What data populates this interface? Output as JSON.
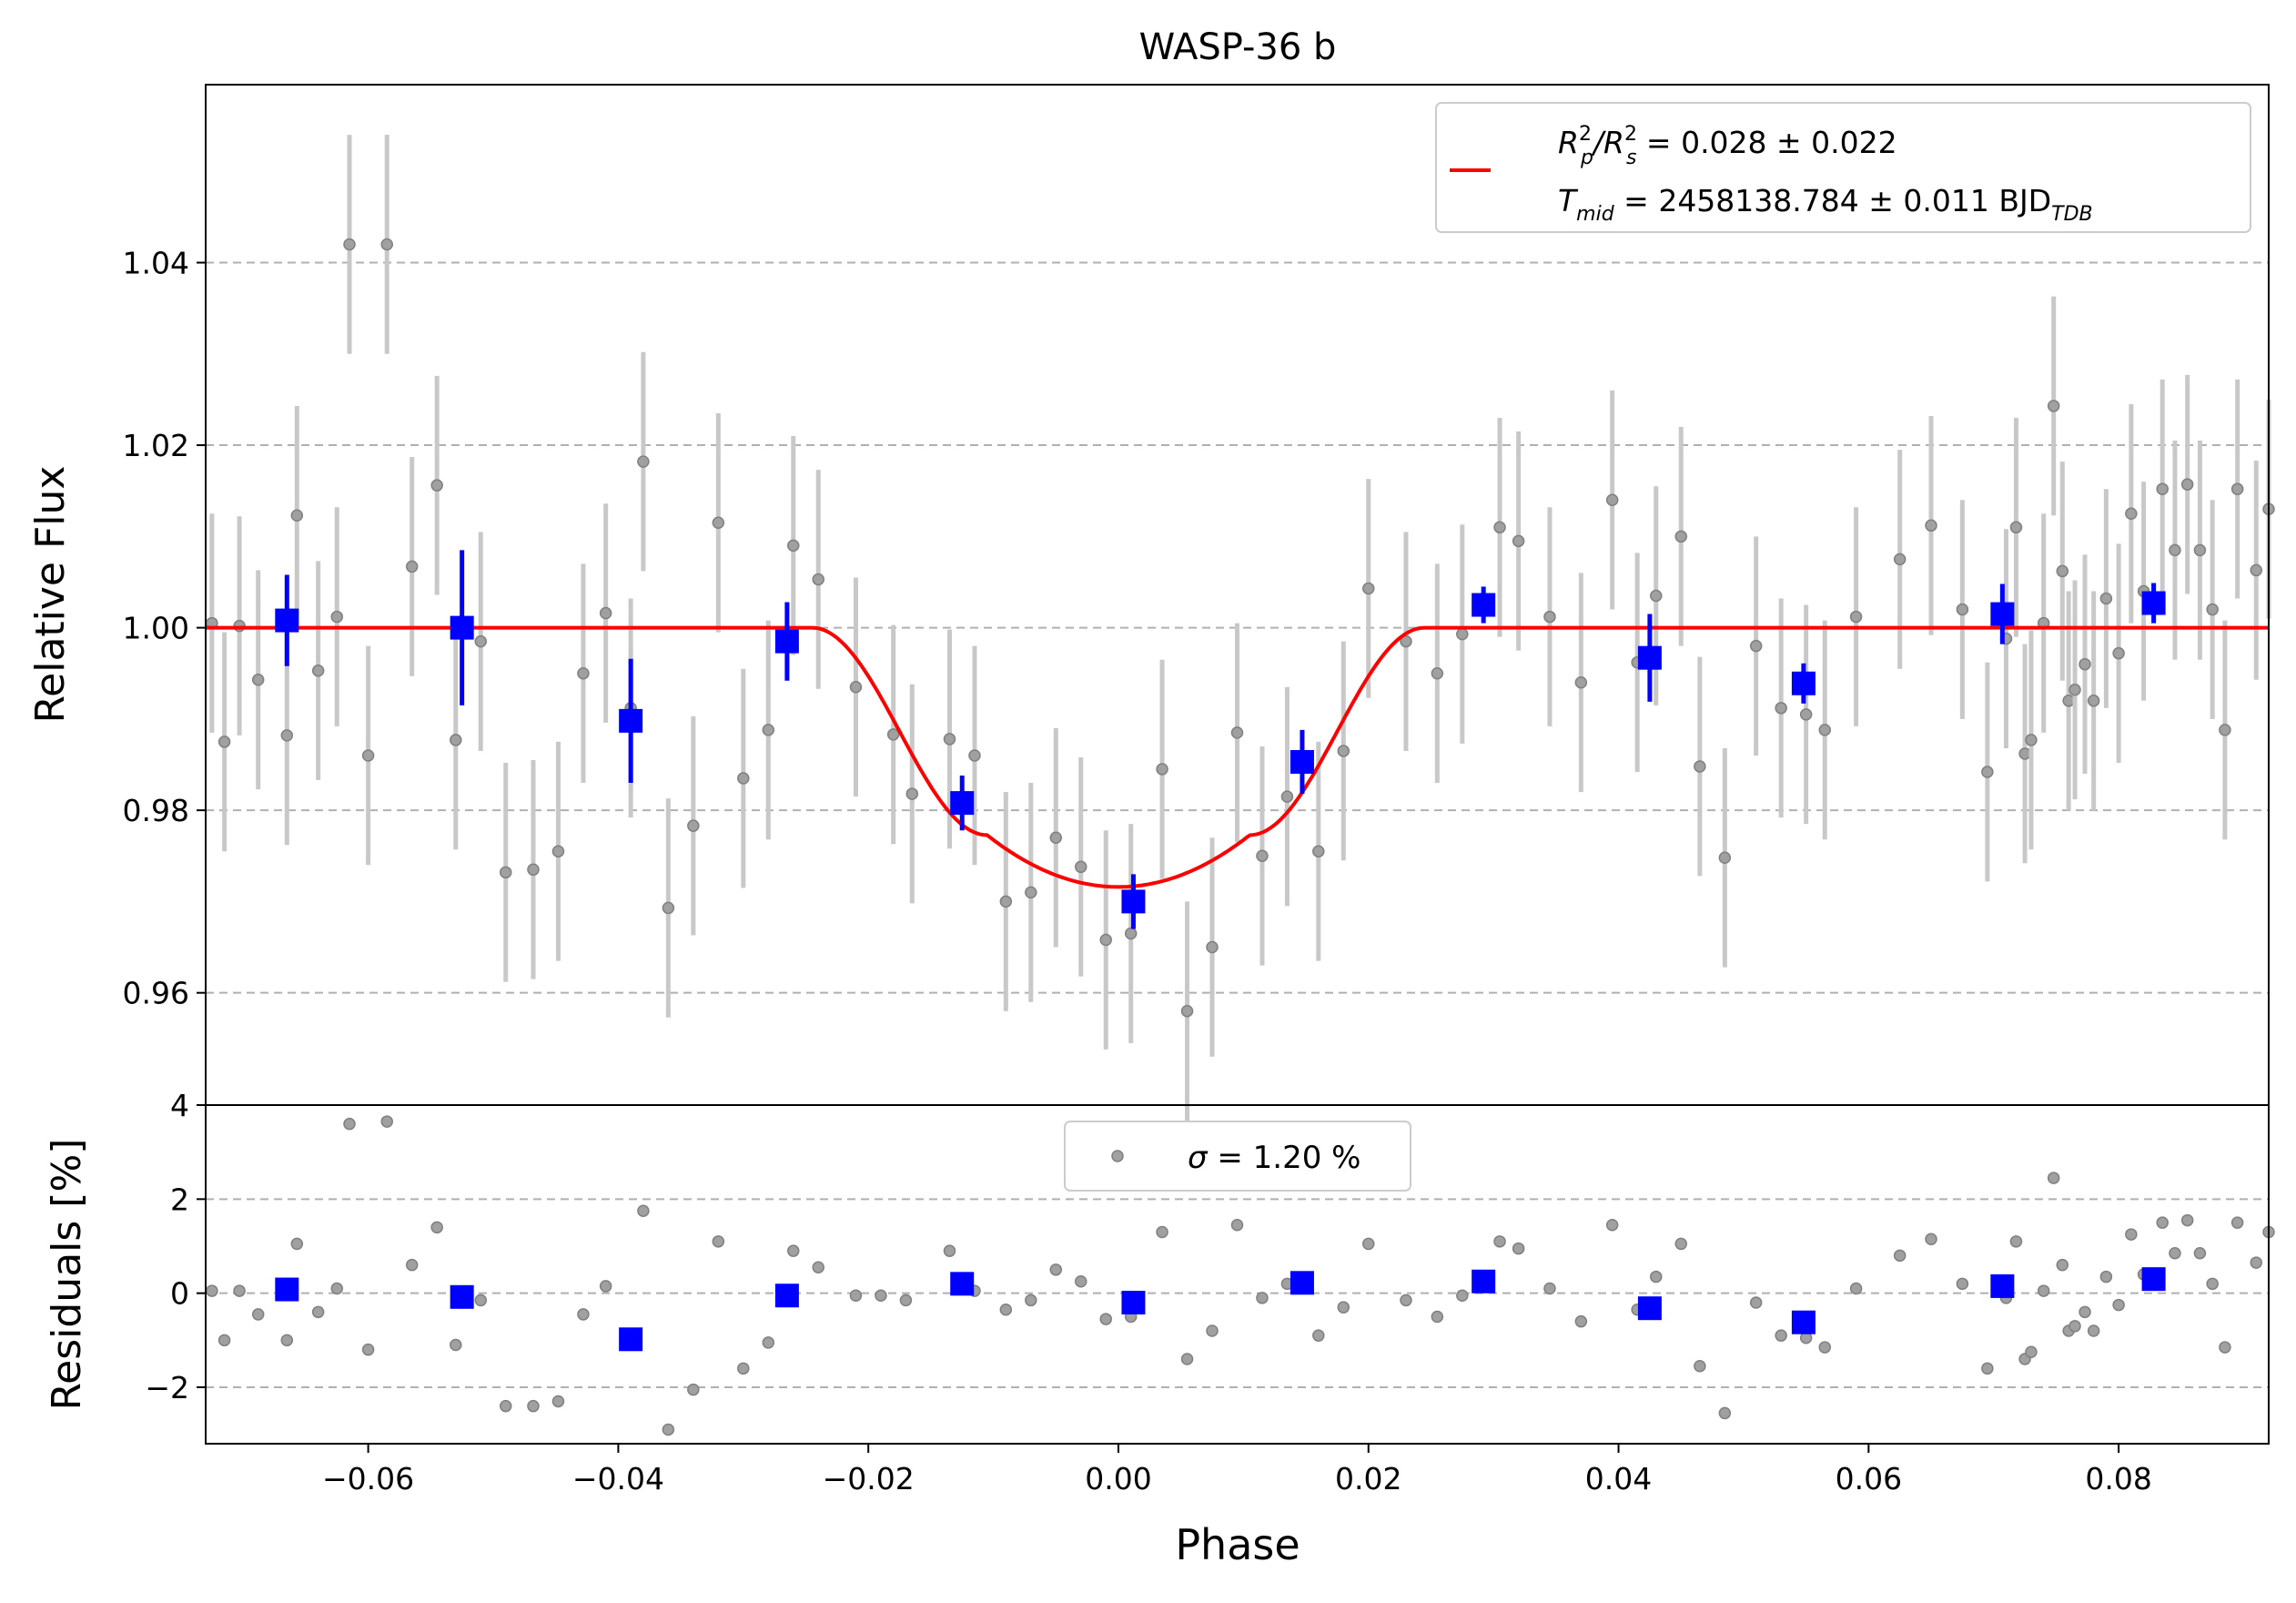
{
  "chart_data": [
    {
      "type": "scatter",
      "panel": "top",
      "title": "WASP-36 b",
      "xlabel": "",
      "ylabel": "Relative Flux",
      "xlim": [
        -0.073,
        0.092
      ],
      "ylim": [
        0.9477,
        1.0595
      ],
      "grid": "horizontal dashed",
      "legend_position": "top-right",
      "yticks": [
        {
          "value": 0.96,
          "label": "0.96"
        },
        {
          "value": 0.98,
          "label": "0.98"
        },
        {
          "value": 1.0,
          "label": "1.00"
        },
        {
          "value": 1.02,
          "label": "1.02"
        },
        {
          "value": 1.04,
          "label": "1.04"
        }
      ],
      "legend": {
        "line1_main": "R",
        "line1_sub_p": "p",
        "line1_sup": "2",
        "line1_slash": "/R",
        "line1_sub_s": "s",
        "line1_sup2": "2",
        "line1_value": " = 0.028 ± 0.022",
        "line2_main": "T",
        "line2_sub": "mid",
        "line2_value": " = 2458138.784 ± 0.011 BJD",
        "line2_unit_sub": "TDB"
      },
      "model": {
        "baseline": 1.0,
        "depth_min": 0.9716,
        "ingress_start": -0.0245,
        "ingress_end": -0.0105,
        "egress_start": 0.0105,
        "egress_end": 0.0245,
        "color": "#ff0000"
      },
      "raw": {
        "color": "#808080",
        "points": [
          [
            -0.0725,
            1.0005,
            0.012
          ],
          [
            -0.0715,
            0.9875,
            0.012
          ],
          [
            -0.0703,
            1.0002,
            0.012
          ],
          [
            -0.0688,
            0.9943,
            0.012
          ],
          [
            -0.0665,
            0.9882,
            0.012
          ],
          [
            -0.0657,
            1.0123,
            0.012
          ],
          [
            -0.064,
            0.9953,
            0.012
          ],
          [
            -0.0625,
            1.0012,
            0.012
          ],
          [
            -0.0615,
            1.042,
            0.012
          ],
          [
            -0.06,
            0.986,
            0.012
          ],
          [
            -0.0585,
            1.042,
            0.012
          ],
          [
            -0.0565,
            1.0067,
            0.012
          ],
          [
            -0.0545,
            1.0156,
            0.012
          ],
          [
            -0.053,
            0.9877,
            0.012
          ],
          [
            -0.051,
            0.9985,
            0.012
          ],
          [
            -0.049,
            0.9732,
            0.012
          ],
          [
            -0.0468,
            0.9735,
            0.012
          ],
          [
            -0.0448,
            0.9755,
            0.012
          ],
          [
            -0.0428,
            0.995,
            0.012
          ],
          [
            -0.041,
            1.0016,
            0.012
          ],
          [
            -0.039,
            0.9912,
            0.012
          ],
          [
            -0.038,
            1.0182,
            0.012
          ],
          [
            -0.036,
            0.9693,
            0.012
          ],
          [
            -0.034,
            0.9783,
            0.012
          ],
          [
            -0.032,
            1.0115,
            0.012
          ],
          [
            -0.03,
            0.9835,
            0.012
          ],
          [
            -0.028,
            0.9888,
            0.012
          ],
          [
            -0.026,
            1.009,
            0.012
          ],
          [
            -0.024,
            1.0053,
            0.012
          ],
          [
            -0.021,
            0.9935,
            0.012
          ],
          [
            -0.018,
            0.9883,
            0.012
          ],
          [
            -0.0165,
            0.9818,
            0.012
          ],
          [
            -0.0135,
            0.9878,
            0.012
          ],
          [
            -0.0115,
            0.986,
            0.012
          ],
          [
            -0.009,
            0.97,
            0.012
          ],
          [
            -0.007,
            0.971,
            0.012
          ],
          [
            -0.005,
            0.977,
            0.012
          ],
          [
            -0.003,
            0.9738,
            0.012
          ],
          [
            -0.001,
            0.9658,
            0.012
          ],
          [
            0.001,
            0.9665,
            0.012
          ],
          [
            0.0035,
            0.9845,
            0.012
          ],
          [
            0.0055,
            0.958,
            0.012
          ],
          [
            0.0075,
            0.965,
            0.012
          ],
          [
            0.0095,
            0.9885,
            0.012
          ],
          [
            0.0115,
            0.975,
            0.012
          ],
          [
            0.0135,
            0.9815,
            0.012
          ],
          [
            0.016,
            0.9755,
            0.012
          ],
          [
            0.018,
            0.9865,
            0.012
          ],
          [
            0.02,
            1.0043,
            0.012
          ],
          [
            0.023,
            0.9985,
            0.012
          ],
          [
            0.0255,
            0.995,
            0.012
          ],
          [
            0.0275,
            0.9993,
            0.012
          ],
          [
            0.0305,
            1.011,
            0.012
          ],
          [
            0.032,
            1.0095,
            0.012
          ],
          [
            0.0345,
            1.0012,
            0.012
          ],
          [
            0.037,
            0.994,
            0.012
          ],
          [
            0.0395,
            1.014,
            0.012
          ],
          [
            0.0415,
            0.9962,
            0.012
          ],
          [
            0.043,
            1.0035,
            0.012
          ],
          [
            0.045,
            1.01,
            0.012
          ],
          [
            0.0465,
            0.9848,
            0.012
          ],
          [
            0.0485,
            0.9748,
            0.012
          ],
          [
            0.051,
            0.998,
            0.012
          ],
          [
            0.053,
            0.9912,
            0.012
          ],
          [
            0.055,
            0.9905,
            0.012
          ],
          [
            0.0565,
            0.9888,
            0.012
          ],
          [
            0.059,
            1.0012,
            0.012
          ],
          [
            0.0625,
            1.0075,
            0.012
          ],
          [
            0.065,
            1.0112,
            0.012
          ],
          [
            0.0675,
            1.002,
            0.012
          ],
          [
            0.0695,
            0.9842,
            0.012
          ],
          [
            0.071,
            0.9988,
            0.012
          ],
          [
            0.0718,
            1.011,
            0.012
          ],
          [
            0.0725,
            0.9862,
            0.012
          ],
          [
            0.073,
            0.9877,
            0.012
          ],
          [
            0.074,
            1.0005,
            0.012
          ],
          [
            0.0748,
            1.0243,
            0.012
          ],
          [
            0.0755,
            1.0062,
            0.012
          ],
          [
            0.076,
            0.992,
            0.012
          ],
          [
            0.0765,
            0.9932,
            0.012
          ],
          [
            0.0773,
            0.996,
            0.012
          ],
          [
            0.078,
            0.992,
            0.012
          ],
          [
            0.079,
            1.0032,
            0.012
          ],
          [
            0.08,
            0.9972,
            0.012
          ],
          [
            0.081,
            1.0125,
            0.012
          ],
          [
            0.082,
            1.004,
            0.012
          ],
          [
            0.0835,
            1.0152,
            0.012
          ],
          [
            0.0845,
            1.0085,
            0.012
          ],
          [
            0.0855,
            1.0157,
            0.012
          ],
          [
            0.0865,
            1.0085,
            0.012
          ],
          [
            0.0875,
            1.002,
            0.012
          ],
          [
            0.0885,
            0.9888,
            0.012
          ],
          [
            0.0895,
            1.0152,
            0.012
          ],
          [
            0.091,
            1.0063,
            0.012
          ],
          [
            0.092,
            1.013,
            0.012
          ]
        ]
      },
      "binned": {
        "color": "#0000ff",
        "points": [
          [
            -0.0665,
            1.0008,
            0.005
          ],
          [
            -0.0525,
            1.0,
            0.0085
          ],
          [
            -0.039,
            0.9898,
            0.0068
          ],
          [
            -0.0265,
            0.9985,
            0.0043
          ],
          [
            -0.0125,
            0.9808,
            0.003
          ],
          [
            0.0012,
            0.97,
            0.003
          ],
          [
            0.0147,
            0.9853,
            0.0035
          ],
          [
            0.0292,
            1.0025,
            0.002
          ],
          [
            0.0425,
            0.9967,
            0.0048
          ],
          [
            0.0548,
            0.9939,
            0.0022
          ],
          [
            0.0707,
            1.0015,
            0.0033
          ],
          [
            0.0828,
            1.0027,
            0.0022
          ]
        ]
      }
    },
    {
      "type": "scatter",
      "panel": "bottom",
      "xlabel": "Phase",
      "ylabel": "Residuals [%]",
      "xlim": [
        -0.073,
        0.092
      ],
      "ylim": [
        -3.2,
        4.0
      ],
      "grid": "horizontal dashed",
      "legend_position": "top-center",
      "legend": {
        "sigma": "σ",
        "value": " = 1.20 %"
      },
      "yticks": [
        {
          "value": -2,
          "label": "−2"
        },
        {
          "value": 0,
          "label": "0"
        },
        {
          "value": 2,
          "label": "2"
        },
        {
          "value": 4,
          "label": "4"
        }
      ],
      "xticks": [
        {
          "value": -0.06,
          "label": "−0.06"
        },
        {
          "value": -0.04,
          "label": "−0.04"
        },
        {
          "value": -0.02,
          "label": "−0.02"
        },
        {
          "value": 0.0,
          "label": "0.00"
        },
        {
          "value": 0.02,
          "label": "0.02"
        },
        {
          "value": 0.04,
          "label": "0.04"
        },
        {
          "value": 0.06,
          "label": "0.06"
        },
        {
          "value": 0.08,
          "label": "0.08"
        }
      ],
      "raw": {
        "color": "#808080",
        "points": [
          [
            -0.0725,
            0.05
          ],
          [
            -0.0715,
            -1.0
          ],
          [
            -0.0703,
            0.05
          ],
          [
            -0.0688,
            -0.45
          ],
          [
            -0.0665,
            -1.0
          ],
          [
            -0.0657,
            1.05
          ],
          [
            -0.064,
            -0.4
          ],
          [
            -0.0625,
            0.1
          ],
          [
            -0.0615,
            3.6
          ],
          [
            -0.06,
            -1.2
          ],
          [
            -0.0585,
            3.65
          ],
          [
            -0.0565,
            0.6
          ],
          [
            -0.0545,
            1.4
          ],
          [
            -0.053,
            -1.1
          ],
          [
            -0.051,
            -0.15
          ],
          [
            -0.049,
            -2.4
          ],
          [
            -0.0468,
            -2.4
          ],
          [
            -0.0448,
            -2.3
          ],
          [
            -0.0428,
            -0.45
          ],
          [
            -0.041,
            0.15
          ],
          [
            -0.039,
            -0.9
          ],
          [
            -0.038,
            1.75
          ],
          [
            -0.036,
            -2.9
          ],
          [
            -0.034,
            -2.05
          ],
          [
            -0.032,
            1.1
          ],
          [
            -0.03,
            -1.6
          ],
          [
            -0.028,
            -1.05
          ],
          [
            -0.026,
            0.9
          ],
          [
            -0.024,
            0.55
          ],
          [
            -0.021,
            -0.05
          ],
          [
            -0.019,
            -0.05
          ],
          [
            -0.017,
            -0.15
          ],
          [
            -0.0135,
            0.9
          ],
          [
            -0.0115,
            0.05
          ],
          [
            -0.009,
            -0.35
          ],
          [
            -0.007,
            -0.15
          ],
          [
            -0.005,
            0.5
          ],
          [
            -0.003,
            0.25
          ],
          [
            -0.001,
            -0.55
          ],
          [
            0.001,
            -0.5
          ],
          [
            0.0035,
            1.3
          ],
          [
            0.0055,
            -1.4
          ],
          [
            0.0075,
            -0.8
          ],
          [
            0.0095,
            1.45
          ],
          [
            0.0115,
            -0.1
          ],
          [
            0.0135,
            0.2
          ],
          [
            0.016,
            -0.9
          ],
          [
            0.018,
            -0.3
          ],
          [
            0.02,
            1.05
          ],
          [
            0.023,
            -0.15
          ],
          [
            0.0255,
            -0.5
          ],
          [
            0.0275,
            -0.05
          ],
          [
            0.0305,
            1.1
          ],
          [
            0.032,
            0.95
          ],
          [
            0.0345,
            0.1
          ],
          [
            0.037,
            -0.6
          ],
          [
            0.0395,
            1.45
          ],
          [
            0.0415,
            -0.35
          ],
          [
            0.043,
            0.35
          ],
          [
            0.045,
            1.05
          ],
          [
            0.0465,
            -1.55
          ],
          [
            0.0485,
            -2.55
          ],
          [
            0.051,
            -0.2
          ],
          [
            0.053,
            -0.9
          ],
          [
            0.055,
            -0.95
          ],
          [
            0.0565,
            -1.15
          ],
          [
            0.059,
            0.1
          ],
          [
            0.0625,
            0.8
          ],
          [
            0.065,
            1.15
          ],
          [
            0.0675,
            0.2
          ],
          [
            0.0695,
            -1.6
          ],
          [
            0.071,
            -0.1
          ],
          [
            0.0718,
            1.1
          ],
          [
            0.0725,
            -1.4
          ],
          [
            0.073,
            -1.25
          ],
          [
            0.074,
            0.05
          ],
          [
            0.0748,
            2.45
          ],
          [
            0.0755,
            0.6
          ],
          [
            0.076,
            -0.8
          ],
          [
            0.0765,
            -0.7
          ],
          [
            0.0773,
            -0.4
          ],
          [
            0.078,
            -0.8
          ],
          [
            0.079,
            0.35
          ],
          [
            0.08,
            -0.25
          ],
          [
            0.081,
            1.25
          ],
          [
            0.082,
            0.4
          ],
          [
            0.0835,
            1.5
          ],
          [
            0.0845,
            0.85
          ],
          [
            0.0855,
            1.55
          ],
          [
            0.0865,
            0.85
          ],
          [
            0.0875,
            0.2
          ],
          [
            0.0885,
            -1.15
          ],
          [
            0.0895,
            1.5
          ],
          [
            0.091,
            0.65
          ],
          [
            0.092,
            1.3
          ]
        ]
      },
      "binned": {
        "color": "#0000ff",
        "points": [
          [
            -0.0665,
            0.08
          ],
          [
            -0.0525,
            -0.08
          ],
          [
            -0.039,
            -0.98
          ],
          [
            -0.0265,
            -0.05
          ],
          [
            -0.0125,
            0.2
          ],
          [
            0.0012,
            -0.2
          ],
          [
            0.0147,
            0.22
          ],
          [
            0.0292,
            0.25
          ],
          [
            0.0425,
            -0.32
          ],
          [
            0.0548,
            -0.62
          ],
          [
            0.0707,
            0.15
          ],
          [
            0.0828,
            0.3
          ]
        ]
      }
    }
  ]
}
